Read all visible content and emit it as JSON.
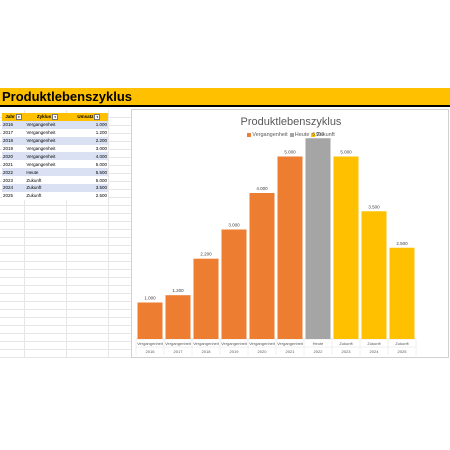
{
  "banner": {
    "title": "Produktlebenszyklus"
  },
  "table": {
    "headers": [
      "Jahr",
      "Zyklus",
      "Umsatz"
    ],
    "rows": [
      [
        "2016",
        "Vergangenheit",
        "1.000"
      ],
      [
        "2017",
        "Vergangenheit",
        "1.200"
      ],
      [
        "2018",
        "Vergangenheit",
        "2.200"
      ],
      [
        "2019",
        "Vergangenheit",
        "3.000"
      ],
      [
        "2020",
        "Vergangenheit",
        "4.000"
      ],
      [
        "2021",
        "Vergangenheit",
        "5.000"
      ],
      [
        "2022",
        "Heute",
        "5.500"
      ],
      [
        "2023",
        "Zukunft",
        "5.000"
      ],
      [
        "2024",
        "Zukunft",
        "3.500"
      ],
      [
        "2025",
        "Zukunft",
        "2.500"
      ]
    ]
  },
  "chart_data": {
    "type": "bar",
    "title": "Produktlebenszyklus",
    "legend": [
      "Vergangenheit",
      "Heute",
      "Zukunft"
    ],
    "legend_position": "top",
    "categories": [
      "2016",
      "2017",
      "2018",
      "2019",
      "2020",
      "2021",
      "2022",
      "2023",
      "2024",
      "2025"
    ],
    "cycles": [
      "Vergangenheit",
      "Vergangenheit",
      "Vergangenheit",
      "Vergangenheit",
      "Vergangenheit",
      "Vergangenheit",
      "Heute",
      "Zukunft",
      "Zukunft",
      "Zukunft"
    ],
    "values": [
      1000,
      1200,
      2200,
      3000,
      4000,
      5000,
      5500,
      5000,
      3500,
      2500
    ],
    "value_labels": [
      "1.000",
      "1.200",
      "2.200",
      "3.000",
      "4.000",
      "5.000",
      "5.500",
      "5.000",
      "3.500",
      "2.500"
    ],
    "ylim": [
      0,
      6000
    ],
    "grid": false,
    "colors": {
      "Vergangenheit": "#ED7D31",
      "Heute": "#A5A5A5",
      "Zukunft": "#FFC000"
    }
  }
}
